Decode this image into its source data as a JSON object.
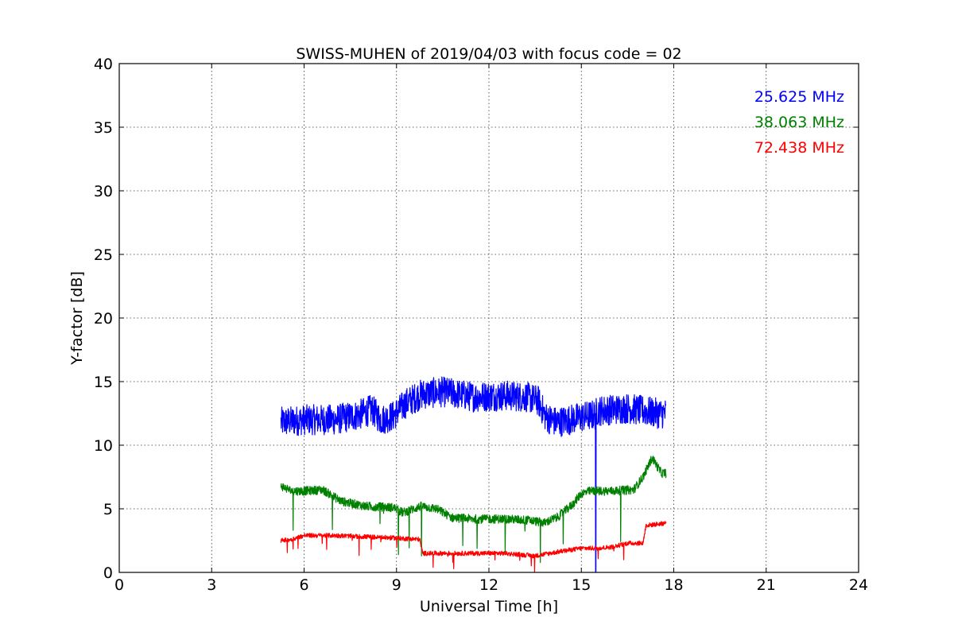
{
  "chart_data": {
    "type": "line",
    "title": "SWISS-MUHEN of 2019/04/03 with focus code = 02",
    "xlabel": "Universal Time [h]",
    "ylabel": "Y-factor [dB]",
    "xlim": [
      0,
      24
    ],
    "ylim": [
      0,
      40
    ],
    "xticks": [
      0,
      3,
      6,
      9,
      12,
      15,
      18,
      21,
      24
    ],
    "yticks": [
      0,
      5,
      10,
      15,
      20,
      25,
      30,
      35,
      40
    ],
    "xtick_labels": [
      "0",
      "3",
      "6",
      "9",
      "12",
      "15",
      "18",
      "21",
      "24"
    ],
    "ytick_labels": [
      "0",
      "5",
      "10",
      "15",
      "20",
      "25",
      "30",
      "35",
      "40"
    ],
    "grid": true,
    "legend_position": "top-right",
    "series": [
      {
        "name": "25.625 MHz",
        "color": "#0000ff",
        "noise": 1.2,
        "x": [
          5.25,
          6.0,
          7.0,
          7.8,
          8.2,
          8.5,
          8.9,
          9.3,
          9.8,
          10.5,
          11.5,
          12.5,
          13.2,
          13.6,
          13.85,
          14.2,
          15.0,
          15.45,
          15.5,
          16.0,
          16.5,
          17.0,
          17.5,
          17.75
        ],
        "y": [
          11.8,
          12.0,
          12.0,
          12.4,
          12.8,
          12.0,
          12.3,
          13.3,
          14.0,
          14.2,
          13.8,
          13.9,
          13.8,
          13.5,
          12.2,
          11.8,
          12.2,
          12.4,
          12.7,
          12.8,
          12.9,
          12.7,
          12.5,
          12.5
        ]
      },
      {
        "name": "38.063 MHz",
        "color": "#008000",
        "noise": 0.35,
        "x": [
          5.25,
          5.6,
          6.0,
          6.6,
          7.2,
          8.0,
          8.9,
          9.2,
          9.8,
          10.3,
          10.8,
          11.5,
          12.5,
          13.3,
          13.8,
          14.2,
          14.7,
          15.0,
          15.3,
          16.0,
          16.7,
          17.0,
          17.3,
          17.6,
          17.75
        ],
        "y": [
          6.8,
          6.4,
          6.4,
          6.5,
          5.6,
          5.2,
          5.1,
          4.7,
          5.2,
          5.0,
          4.3,
          4.2,
          4.2,
          4.1,
          3.9,
          4.3,
          5.3,
          6.2,
          6.4,
          6.4,
          6.5,
          7.5,
          9.0,
          7.8,
          7.8
        ]
      },
      {
        "name": "72.438 MHz",
        "color": "#ff0000",
        "noise": 0.18,
        "x": [
          5.25,
          5.6,
          6.0,
          7.0,
          8.0,
          9.0,
          9.75,
          9.85,
          10.5,
          11.5,
          12.5,
          13.5,
          14.2,
          15.0,
          15.5,
          16.0,
          16.5,
          17.0,
          17.1,
          17.5,
          17.75
        ],
        "y": [
          2.5,
          2.6,
          2.9,
          2.9,
          2.8,
          2.7,
          2.6,
          1.5,
          1.5,
          1.5,
          1.5,
          1.3,
          1.6,
          1.9,
          1.9,
          2.0,
          2.3,
          2.3,
          3.7,
          3.8,
          3.9
        ]
      }
    ]
  }
}
